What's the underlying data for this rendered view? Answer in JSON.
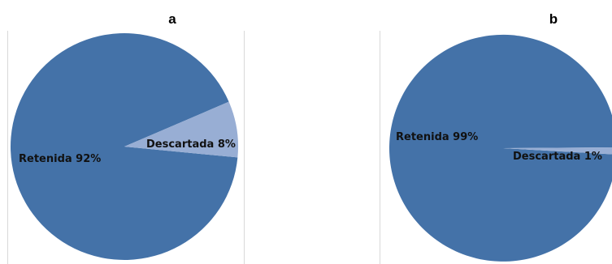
{
  "chart_data": [
    {
      "type": "pie",
      "panel_label": "a",
      "slices": [
        {
          "label": "Retenida 92%",
          "value": 92
        },
        {
          "label": "Descartada 8%",
          "value": 8
        }
      ],
      "colors": [
        "#4472a8",
        "#98aed4"
      ]
    },
    {
      "type": "pie",
      "panel_label": "b",
      "slices": [
        {
          "label": "Retenida 99%",
          "value": 99
        },
        {
          "label": "Descartada 1%",
          "value": 1
        }
      ],
      "colors": [
        "#4472a8",
        "#98aed4"
      ]
    }
  ]
}
